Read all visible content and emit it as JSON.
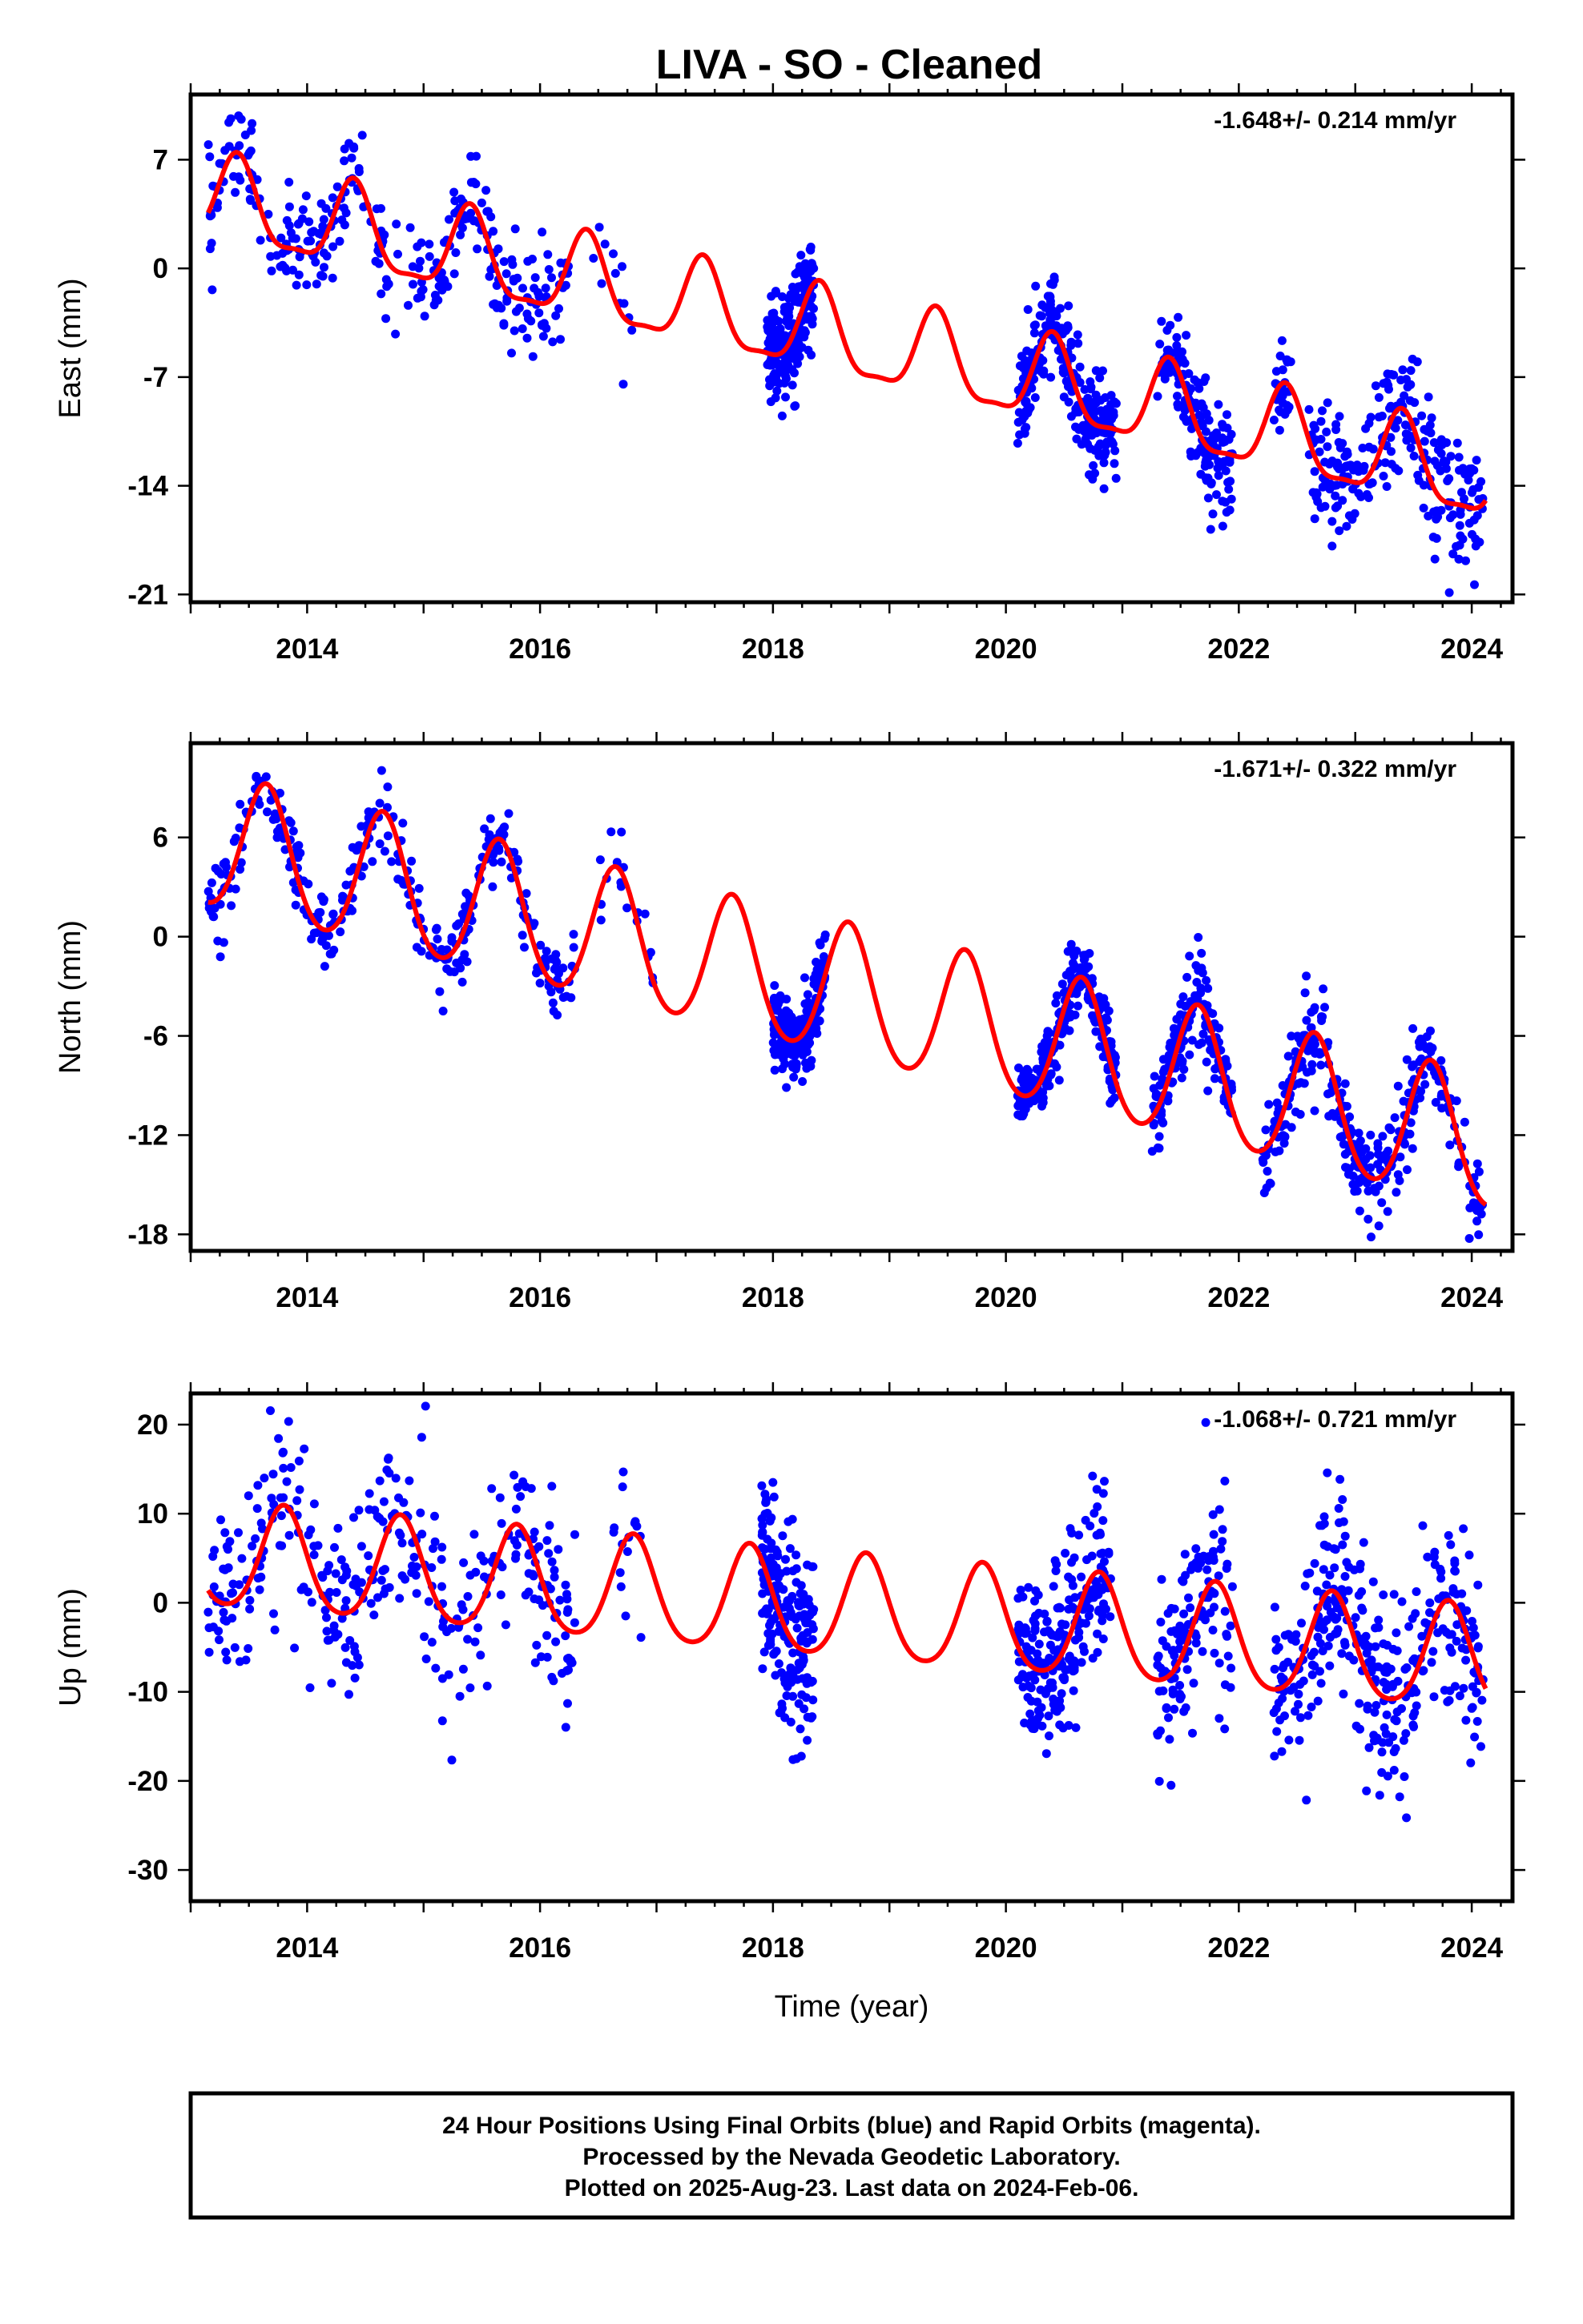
{
  "title": "LIVA  - SO - Cleaned",
  "colors": {
    "data_points": "#0000ff",
    "model_curve": "#ff0000",
    "frame": "#000000"
  },
  "chart_data": [
    {
      "type": "scatter",
      "component": "East",
      "ylabel": "East (mm)",
      "xlabel": "",
      "rate_text": "-1.648+/- 0.214 mm/yr",
      "xlim": [
        2013.0,
        2024.35
      ],
      "ylim": [
        -21.5,
        11.2
      ],
      "yticks": [
        7,
        0,
        -7,
        -14,
        -21
      ],
      "xticks": [
        2014,
        2016,
        2018,
        2020,
        2022,
        2024
      ],
      "model": {
        "offset": 4.3,
        "slope": -1.648,
        "t0": 2013.2,
        "amp": 2.7,
        "phase_peak": 2013.4,
        "amp2": 0.8
      },
      "data_segments": [
        {
          "start": 2013.15,
          "end": 2016.25,
          "density": 300,
          "scatter": 1.6
        },
        {
          "start": 2016.4,
          "end": 2016.8,
          "density": 12,
          "scatter": 1.8
        },
        {
          "start": 2017.95,
          "end": 2018.35,
          "density": 240,
          "scatter": 1.7
        },
        {
          "start": 2020.1,
          "end": 2020.95,
          "density": 260,
          "scatter": 1.5
        },
        {
          "start": 2021.3,
          "end": 2021.95,
          "density": 150,
          "scatter": 1.8
        },
        {
          "start": 2022.3,
          "end": 2022.45,
          "density": 30,
          "scatter": 1.5
        },
        {
          "start": 2022.6,
          "end": 2024.1,
          "density": 240,
          "scatter": 2.2
        }
      ]
    },
    {
      "type": "scatter",
      "component": "North",
      "ylabel": "North (mm)",
      "xlabel": "",
      "rate_text": "-1.671+/- 0.322 mm/yr",
      "xlim": [
        2013.0,
        2024.35
      ],
      "ylim": [
        -19.0,
        11.7
      ],
      "yticks": [
        6,
        0,
        -6,
        -12,
        -18
      ],
      "xticks": [
        2014,
        2016,
        2018,
        2020,
        2022,
        2024
      ],
      "model": {
        "offset": 5.6,
        "slope": -1.671,
        "t0": 2013.2,
        "amp": 4.0,
        "phase_peak": 2013.65,
        "amp2": 0.4
      },
      "data_segments": [
        {
          "start": 2013.15,
          "end": 2016.3,
          "density": 320,
          "scatter": 1.1
        },
        {
          "start": 2016.5,
          "end": 2017.0,
          "density": 18,
          "scatter": 1.5
        },
        {
          "start": 2018.0,
          "end": 2018.45,
          "density": 220,
          "scatter": 1.2
        },
        {
          "start": 2020.1,
          "end": 2020.95,
          "density": 260,
          "scatter": 1.1
        },
        {
          "start": 2021.25,
          "end": 2021.95,
          "density": 160,
          "scatter": 1.3
        },
        {
          "start": 2022.2,
          "end": 2024.1,
          "density": 320,
          "scatter": 1.4
        }
      ]
    },
    {
      "type": "scatter",
      "component": "Up",
      "ylabel": "Up (mm)",
      "xlabel": "Time (year)",
      "rate_text": "-1.068+/- 0.721 mm/yr",
      "xlim": [
        2013.0,
        2024.35
      ],
      "ylim": [
        -33.5,
        23.5
      ],
      "yticks": [
        20,
        10,
        0,
        -10,
        -20,
        -30
      ],
      "xticks": [
        2014,
        2016,
        2018,
        2020,
        2022,
        2024
      ],
      "model": {
        "offset": 5.0,
        "slope": -1.068,
        "t0": 2013.2,
        "amp": 5.8,
        "phase_peak": 2013.8,
        "amp2": 0.8
      },
      "data_segments": [
        {
          "start": 2013.15,
          "end": 2016.3,
          "density": 340,
          "scatter": 5.2
        },
        {
          "start": 2016.6,
          "end": 2016.9,
          "density": 15,
          "scatter": 5.0
        },
        {
          "start": 2017.9,
          "end": 2018.35,
          "density": 200,
          "scatter": 5.5
        },
        {
          "start": 2020.1,
          "end": 2020.9,
          "density": 240,
          "scatter": 5.0
        },
        {
          "start": 2021.3,
          "end": 2021.95,
          "density": 130,
          "scatter": 5.0
        },
        {
          "start": 2022.3,
          "end": 2024.1,
          "density": 330,
          "scatter": 5.6
        }
      ]
    }
  ],
  "footer": {
    "line1": "24 Hour Positions Using Final Orbits (blue) and Rapid Orbits (magenta).",
    "line2": "Processed by the Nevada Geodetic Laboratory.",
    "line3": "Plotted on 2025-Aug-23. Last data on 2024-Feb-06."
  }
}
